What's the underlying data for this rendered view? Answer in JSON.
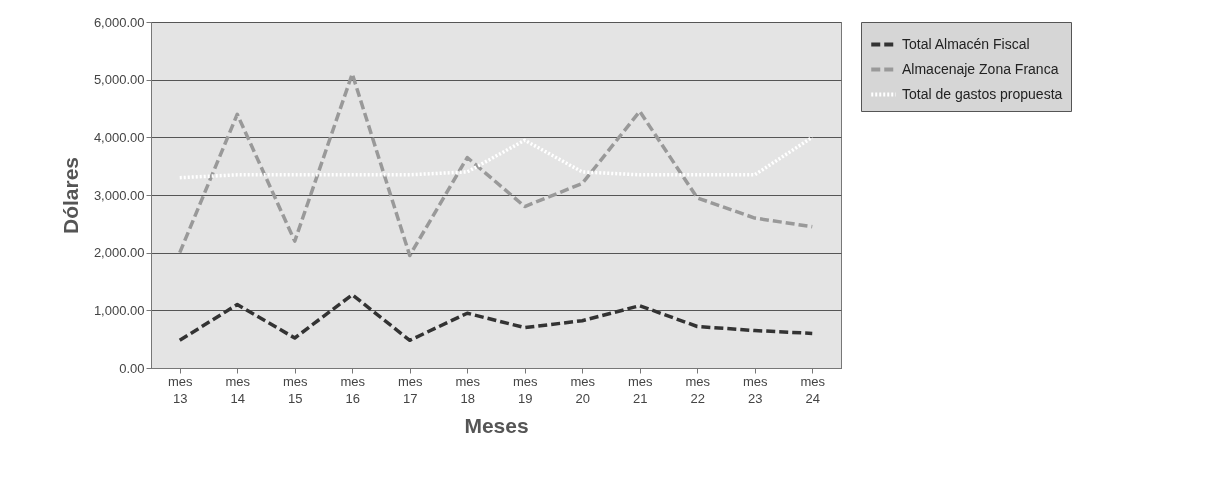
{
  "chart_data": {
    "type": "line",
    "xlabel": "Meses",
    "ylabel": "Dólares",
    "categories": [
      "mes 13",
      "mes 14",
      "mes 15",
      "mes 16",
      "mes 17",
      "mes 18",
      "mes 19",
      "mes 20",
      "mes 21",
      "mes 22",
      "mes 23",
      "mes 24"
    ],
    "series": [
      {
        "name": "Total Almacén Fiscal",
        "color": "#333333",
        "line_style": "dashed",
        "values": [
          480,
          1100,
          520,
          1270,
          480,
          950,
          700,
          820,
          1080,
          720,
          650,
          600
        ]
      },
      {
        "name": "Almacenaje Zona Franca",
        "color": "#999999",
        "line_style": "dashed",
        "values": [
          2000,
          4400,
          2200,
          5100,
          1950,
          3650,
          2800,
          3200,
          4450,
          2950,
          2600,
          2450
        ]
      },
      {
        "name": "Total de gastos propuesta",
        "color": "#ffffff",
        "line_style": "dotted",
        "values": [
          3300,
          3350,
          3350,
          3350,
          3350,
          3400,
          3950,
          3400,
          3350,
          3350,
          3350,
          4000
        ]
      }
    ],
    "ylim": [
      0,
      6000
    ],
    "yticks": [
      {
        "value": 0,
        "label": "0.00"
      },
      {
        "value": 1000,
        "label": "1,000.00"
      },
      {
        "value": 2000,
        "label": "2,000.00"
      },
      {
        "value": 3000,
        "label": "3,000.00"
      },
      {
        "value": 4000,
        "label": "4,000.00"
      },
      {
        "value": 5000,
        "label": "5,000.00"
      },
      {
        "value": 6000,
        "label": "6,000.00"
      }
    ],
    "grid": "y",
    "legend": "right",
    "marker": "none"
  }
}
